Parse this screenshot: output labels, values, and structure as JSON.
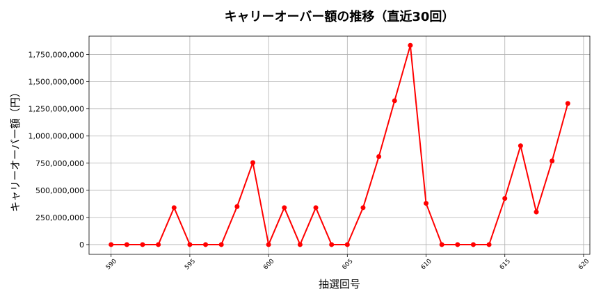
{
  "chart_data": {
    "type": "line",
    "title": "キャリーオーバー額の推移（直近30回）",
    "xlabel": "抽選回号",
    "ylabel": "キャリーオーバー額（円）",
    "xlim": [
      588.6,
      620.4
    ],
    "ylim": [
      -90000000,
      1920000000
    ],
    "xticks": [
      590,
      595,
      600,
      605,
      610,
      615,
      620
    ],
    "yticks": [
      0,
      250000000,
      500000000,
      750000000,
      1000000000,
      1250000000,
      1500000000,
      1750000000
    ],
    "ytick_labels": [
      "0",
      "250,000,000",
      "500,000,000",
      "750,000,000",
      "1,000,000,000",
      "1,250,000,000",
      "1,500,000,000",
      "1,750,000,000"
    ],
    "grid": true,
    "series": [
      {
        "color": "#ff0000",
        "x": [
          590,
          591,
          592,
          593,
          594,
          595,
          596,
          597,
          598,
          599,
          600,
          601,
          602,
          603,
          604,
          605,
          606,
          607,
          608,
          609,
          610,
          611,
          612,
          613,
          614,
          615,
          616,
          617,
          618,
          619
        ],
        "y": [
          0,
          0,
          0,
          0,
          340000000,
          0,
          0,
          0,
          350000000,
          755000000,
          0,
          340000000,
          0,
          340000000,
          0,
          0,
          340000000,
          810000000,
          1325000000,
          1835000000,
          380000000,
          0,
          0,
          0,
          0,
          425000000,
          910000000,
          300000000,
          770000000,
          1300000000
        ]
      }
    ]
  }
}
